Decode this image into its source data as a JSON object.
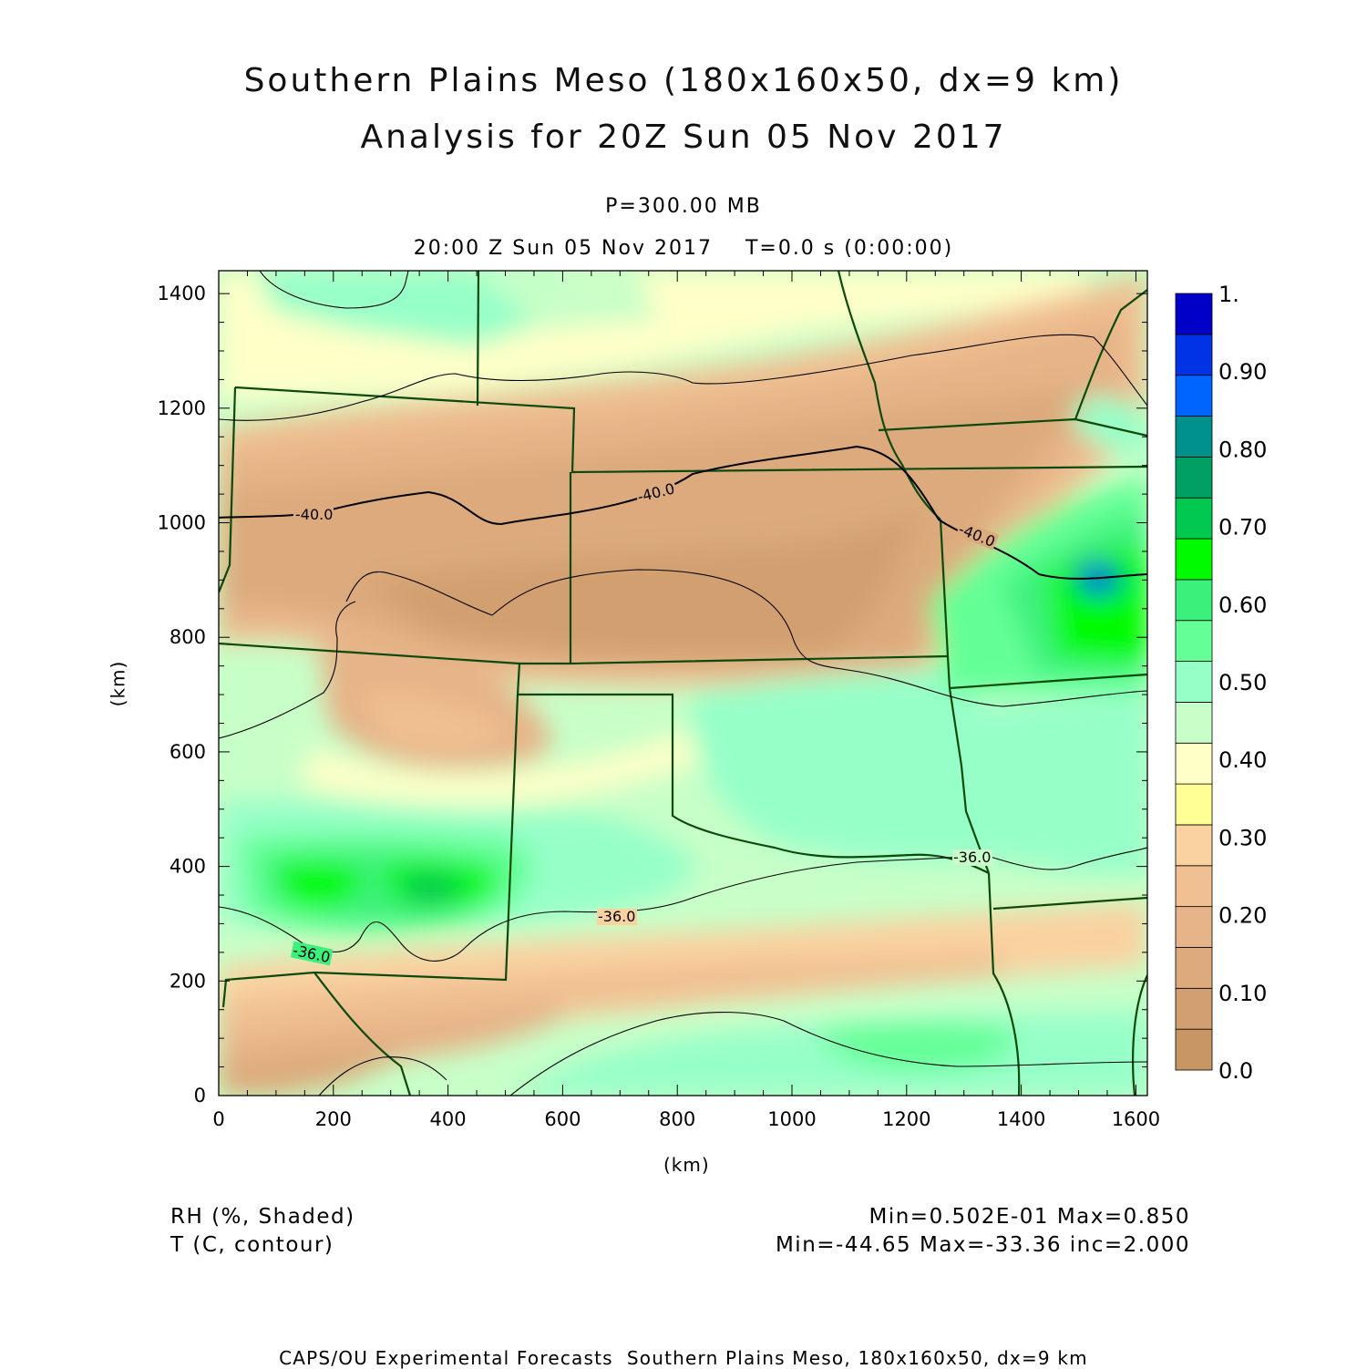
{
  "title": {
    "line1": "Southern Plains Meso (180x160x50, dx=9 km)",
    "line2": "Analysis for 20Z Sun 05 Nov 2017"
  },
  "level": "P=300.00 MB",
  "time_line": "20:00 Z Sun 05 Nov 2017    T=0.0 s (0:00:00)",
  "axes": {
    "x_label": "(km)",
    "y_label": "(km)",
    "x_ticks": [
      "0",
      "200",
      "400",
      "600",
      "800",
      "1000",
      "1200",
      "1400",
      "1600"
    ],
    "y_ticks": [
      "0",
      "200",
      "400",
      "600",
      "800",
      "1000",
      "1200",
      "1400"
    ]
  },
  "colorbar": {
    "labels": [
      "1.",
      "0.90",
      "0.80",
      "0.70",
      "0.60",
      "0.50",
      "0.40",
      "0.30",
      "0.20",
      "0.10",
      "0.0"
    ],
    "colors": [
      "#c89664",
      "#d2a070",
      "#dcaa7c",
      "#e6b488",
      "#f0c092",
      "#fad2a0",
      "#ffff96",
      "#ffffc8",
      "#c8ffc8",
      "#96ffc8",
      "#64ff96",
      "#3cf07c",
      "#00fa00",
      "#00c850",
      "#00a064",
      "#00908c",
      "#0064ff",
      "#0032e6",
      "#0000c8"
    ]
  },
  "contour_labels": [
    "-40.0",
    "-40.0",
    "-40.0",
    "-36.0",
    "-36.0",
    "-36.0"
  ],
  "stats": {
    "field1_name": "RH (%, Shaded)",
    "field1_range": "Min=0.502E-01 Max=0.850",
    "field2_name": "T (C, contour)",
    "field2_range": "Min=-44.65 Max=-33.36 inc=2.000"
  },
  "footer": "CAPS/OU Experimental Forecasts  Southern Plains Meso, 180x160x50, dx=9 km"
}
